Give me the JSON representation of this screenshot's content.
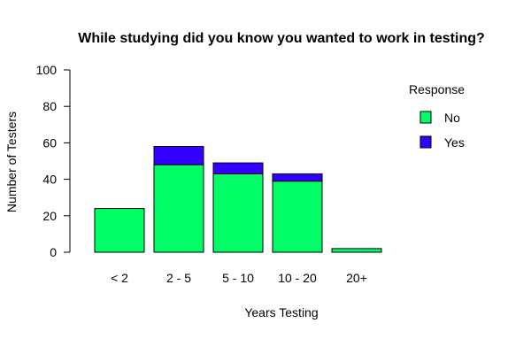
{
  "chart_data": {
    "type": "bar",
    "stacked": true,
    "title": "While studying did you know you wanted to work in testing?",
    "xlabel": "Years Testing",
    "ylabel": "Number of Testers",
    "categories": [
      "< 2",
      "2 - 5",
      "5 - 10",
      "10 - 20",
      "20+"
    ],
    "series": [
      {
        "name": "No",
        "values": [
          24,
          48,
          43,
          39,
          2
        ],
        "color": "#00ff66"
      },
      {
        "name": "Yes",
        "values": [
          0,
          10,
          6,
          4,
          0
        ],
        "color": "#3300ff"
      }
    ],
    "ylim": [
      0,
      100
    ],
    "yticks": [
      "0",
      "20",
      "40",
      "60",
      "80",
      "100"
    ],
    "grid": false,
    "legend": {
      "title": "Response",
      "position": "right"
    }
  }
}
